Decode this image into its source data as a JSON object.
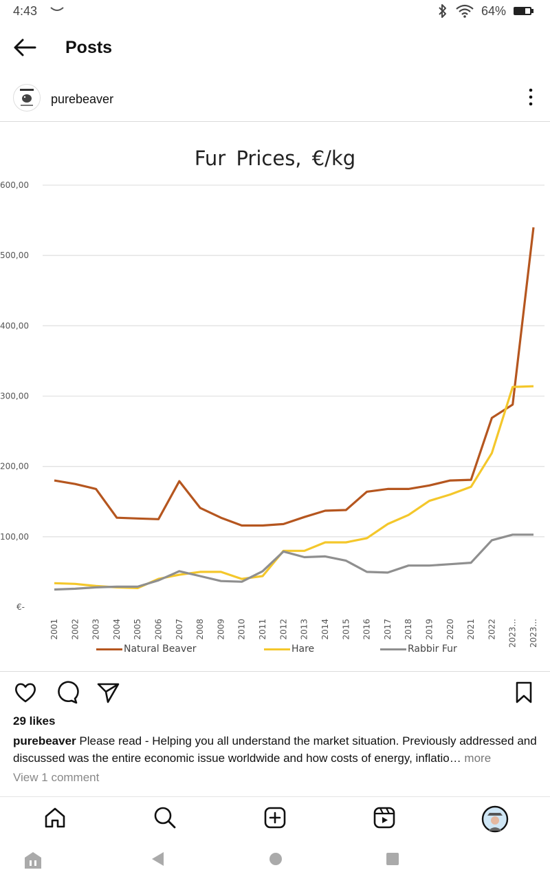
{
  "status": {
    "time": "4:43",
    "battery_pct": "64%"
  },
  "header": {
    "title": "Posts"
  },
  "post": {
    "username": "purebeaver",
    "likes": "29 likes",
    "caption_user": "purebeaver",
    "caption_text": "Please read - Helping you all understand the market situation. Previously addressed and discussed was the entire economic issue worldwide and how costs of energy, inflatio",
    "caption_more": "more",
    "view_comments": "View 1 comment"
  },
  "chart_data": {
    "type": "line",
    "title": "Fur  Prices,  €/kg",
    "categories": [
      "2001",
      "2002",
      "2003",
      "2004",
      "2005",
      "2006",
      "2007",
      "2008",
      "2009",
      "2010",
      "2011",
      "2012",
      "2013",
      "2014",
      "2015",
      "2016",
      "2017",
      "2018",
      "2019",
      "2020",
      "2021",
      "2022",
      "2023...",
      "2023..."
    ],
    "y_tick_labels": [
      "€-",
      "100,00",
      "200,00",
      "300,00",
      "400,00",
      "500,00",
      "600,00"
    ],
    "ylim": [
      0,
      600
    ],
    "grid": true,
    "legend_position": "bottom",
    "series": [
      {
        "name": "Natural Beaver",
        "color": "#b5561f",
        "values": [
          180,
          175,
          168,
          127,
          126,
          125,
          179,
          141,
          127,
          116,
          116,
          118,
          128,
          137,
          138,
          164,
          168,
          168,
          173,
          180,
          181,
          269,
          288,
          540
        ]
      },
      {
        "name": "Hare",
        "color": "#f4c72b",
        "values": [
          34,
          33,
          30,
          28,
          27,
          40,
          46,
          50,
          50,
          40,
          44,
          80,
          80,
          92,
          92,
          98,
          118,
          131,
          151,
          160,
          171,
          219,
          313,
          314
        ]
      },
      {
        "name": "Rabbir Fur",
        "color": "#8f8f8f",
        "values": [
          25,
          26,
          28,
          29,
          29,
          38,
          51,
          44,
          37,
          36,
          51,
          79,
          71,
          72,
          66,
          50,
          49,
          59,
          59,
          61,
          63,
          95,
          103,
          103
        ]
      }
    ]
  }
}
